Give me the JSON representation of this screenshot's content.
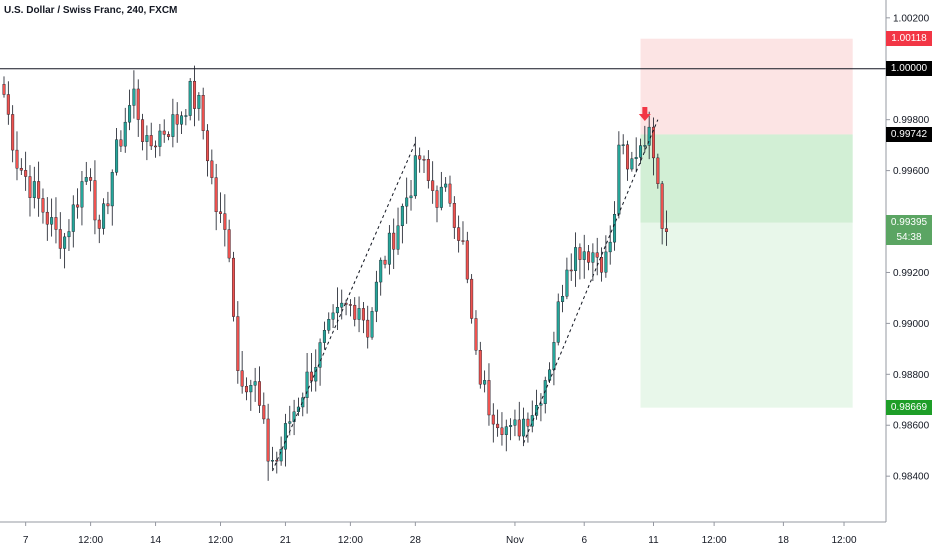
{
  "title": "U.S. Dollar / Swiss Franc, 240, FXCM",
  "colors": {
    "up": "#26a69a",
    "down": "#ef5350",
    "stop_zone": "#fce4e4",
    "target_zone": "#d2efd5",
    "target_zone_light": "#e8f7ea",
    "red_tag": "#f23645",
    "green_tag": "#1e9e28",
    "black_tag": "#000000",
    "current_tag": "#5ba563"
  },
  "price_tags": [
    {
      "label": "1.00118",
      "value": 1.00118,
      "color": "#f23645"
    },
    {
      "label": "1.00000",
      "value": 1.0,
      "color": "#000000"
    },
    {
      "label": "0.99742",
      "value": 0.99742,
      "color": "#000000"
    },
    {
      "label": "0.99395",
      "value": 0.99395,
      "color": "#5ba563"
    },
    {
      "label": "0.98669",
      "value": 0.98669,
      "color": "#1e9e28"
    }
  ],
  "countdown": "54:38",
  "chart_data": {
    "type": "candlestick",
    "title": "U.S. Dollar / Swiss Franc, 240, FXCM",
    "ylim": [
      0.9822,
      1.0027
    ],
    "y_ticks": [
      "1.00200",
      "0.99800",
      "0.99600",
      "0.99200",
      "0.99000",
      "0.98800",
      "0.98600",
      "0.98400"
    ],
    "y_tick_values": [
      1.002,
      0.998,
      0.996,
      0.992,
      0.99,
      0.988,
      0.986,
      0.984
    ],
    "x_ticks": [
      "7",
      "12:00",
      "14",
      "12:00",
      "21",
      "12:00",
      "28",
      "Nov",
      "6",
      "11",
      "12:00",
      "18",
      "12:00"
    ],
    "x_tick_index": [
      5,
      20,
      35,
      50,
      65,
      80,
      95,
      118,
      134,
      150,
      164,
      180,
      194
    ],
    "horizontal_line": 1.0,
    "position": {
      "type": "short",
      "entry": 0.99742,
      "stop": 1.00118,
      "target": 0.98669,
      "current": 0.99395,
      "start_index": 147,
      "end_index": 196
    },
    "arrow": {
      "index": 148,
      "price": 0.99795,
      "direction": "down"
    },
    "trendlines": [
      {
        "from": [
          62,
          0.9842
        ],
        "to": [
          95,
          0.9971
        ]
      },
      {
        "from": [
          120,
          0.9853
        ],
        "to": [
          151,
          0.998
        ]
      }
    ],
    "waypoints": [
      [
        0,
        0.999
      ],
      [
        3,
        0.9964
      ],
      [
        8,
        0.9948
      ],
      [
        12,
        0.9935
      ],
      [
        14,
        0.9934
      ],
      [
        18,
        0.9955
      ],
      [
        20,
        0.996
      ],
      [
        22,
        0.9932
      ],
      [
        25,
        0.996
      ],
      [
        28,
        0.998
      ],
      [
        30,
        0.999
      ],
      [
        33,
        0.9968
      ],
      [
        36,
        0.9975
      ],
      [
        40,
        0.998
      ],
      [
        43,
        0.999
      ],
      [
        45,
        0.9985
      ],
      [
        47,
        0.9967
      ],
      [
        49,
        0.9945
      ],
      [
        52,
        0.993
      ],
      [
        54,
        0.9882
      ],
      [
        58,
        0.9875
      ],
      [
        61,
        0.9848
      ],
      [
        63,
        0.9846
      ],
      [
        66,
        0.9862
      ],
      [
        70,
        0.9878
      ],
      [
        74,
        0.9893
      ],
      [
        78,
        0.9905
      ],
      [
        82,
        0.9908
      ],
      [
        84,
        0.9898
      ],
      [
        87,
        0.9922
      ],
      [
        89,
        0.993
      ],
      [
        92,
        0.9945
      ],
      [
        96,
        0.9965
      ],
      [
        98,
        0.9955
      ],
      [
        100,
        0.995
      ],
      [
        103,
        0.995
      ],
      [
        106,
        0.993
      ],
      [
        108,
        0.99
      ],
      [
        109,
        0.9885
      ],
      [
        112,
        0.9868
      ],
      [
        115,
        0.9862
      ],
      [
        117,
        0.9856
      ],
      [
        119,
        0.986
      ],
      [
        121,
        0.9865
      ],
      [
        123,
        0.9868
      ],
      [
        126,
        0.9885
      ],
      [
        128,
        0.9905
      ],
      [
        130,
        0.9925
      ],
      [
        133,
        0.993
      ],
      [
        136,
        0.9928
      ],
      [
        139,
        0.9925
      ],
      [
        141,
        0.994
      ],
      [
        142,
        0.9972
      ],
      [
        144,
        0.9958
      ],
      [
        146,
        0.9968
      ],
      [
        148,
        0.9975
      ],
      [
        150,
        0.997
      ],
      [
        151,
        0.996
      ],
      [
        152,
        0.9941
      ],
      [
        153,
        0.9936
      ]
    ]
  }
}
